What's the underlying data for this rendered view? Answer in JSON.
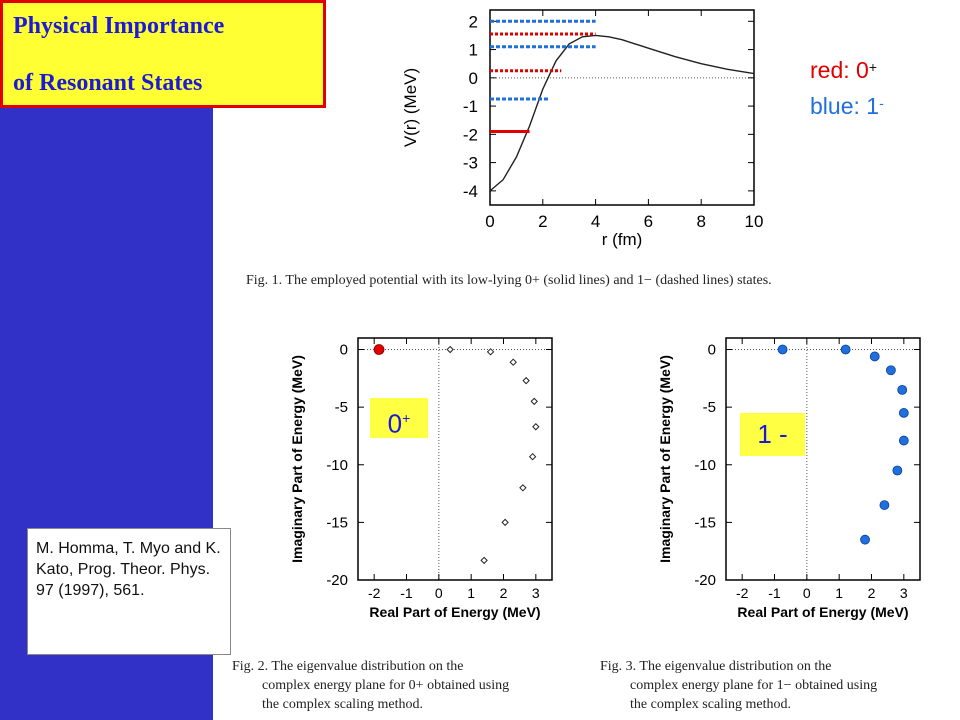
{
  "title": {
    "line1": "Physical Importance",
    "line2": "of Resonant States"
  },
  "reference": {
    "text": "M. Homma, T. Myo and K. Kato, Prog. Theor. Phys. 97 (1997), 561."
  },
  "legend": {
    "red_label": "red: 0",
    "red_sup": "+",
    "blue_label": "blue: 1",
    "blue_sup": "-"
  },
  "labels": {
    "zero_plus": "0",
    "zero_plus_sup": "+",
    "one_minus": "1 -"
  },
  "captions": {
    "fig1": "Fig. 1.   The employed potential with its low-lying 0+ (solid lines) and 1− (dashed lines) states.",
    "fig2_line1": "Fig. 2.   The eigenvalue distribution on the",
    "fig2_line2": "complex energy plane for 0+ obtained using",
    "fig2_line3": "the complex scaling method.",
    "fig3_line1": "Fig. 3.   The eigenvalue distribution on the",
    "fig3_line2": "complex energy plane for 1− obtained using",
    "fig3_line3": "the complex scaling method."
  },
  "colors": {
    "red": "#e00000",
    "blue": "#1f6fdc",
    "left_bar": "#3131c8",
    "yellow": "#ffff33"
  },
  "chart_data": [
    {
      "type": "line",
      "xlabel": "r (fm)",
      "ylabel": "V(r) (MeV)",
      "xlim": [
        0,
        10
      ],
      "ylim": [
        -4.5,
        2.4
      ],
      "xticks": [
        "0",
        "2",
        "4",
        "6",
        "8",
        "10"
      ],
      "yticks": [
        "2",
        "1",
        "0",
        "-1",
        "-2",
        "-3",
        "-4"
      ],
      "potential": {
        "x": [
          0,
          0.5,
          1,
          1.5,
          2,
          2.5,
          3,
          3.5,
          4,
          4.5,
          5,
          6,
          7,
          8,
          9,
          10
        ],
        "y": [
          -4.0,
          -3.6,
          -2.8,
          -1.7,
          -0.4,
          0.6,
          1.2,
          1.45,
          1.5,
          1.45,
          1.35,
          1.05,
          0.75,
          0.5,
          0.3,
          0.15
        ]
      },
      "levels_0plus": [
        {
          "energy": -1.9,
          "r_end": 1.5,
          "style": "solid"
        },
        {
          "energy": 0.25,
          "r_end": 2.7,
          "style": "dotted"
        },
        {
          "energy": 1.55,
          "r_end": 4.0,
          "style": "dotted"
        }
      ],
      "levels_1minus": [
        {
          "energy": -0.75,
          "r_end": 2.2,
          "style": "dashed"
        },
        {
          "energy": 1.1,
          "r_end": 4.0,
          "style": "dashed"
        },
        {
          "energy": 2.0,
          "r_end": 4.0,
          "style": "dashed"
        }
      ]
    },
    {
      "type": "scatter",
      "xlabel": "Real Part of Energy (MeV)",
      "ylabel": "Imaginary Part of Energy (MeV)",
      "xlim": [
        -2.5,
        3.5
      ],
      "ylim": [
        -20,
        1
      ],
      "xticks": [
        "-2",
        "-1",
        "0",
        "1",
        "2",
        "3"
      ],
      "yticks": [
        "0",
        "-5",
        "-10",
        "-15",
        "-20"
      ],
      "points": [
        {
          "x": -1.85,
          "y": 0.0,
          "highlight": true
        },
        {
          "x": 0.35,
          "y": 0.0
        },
        {
          "x": 1.6,
          "y": -0.2
        },
        {
          "x": 2.3,
          "y": -1.1
        },
        {
          "x": 2.7,
          "y": -2.7
        },
        {
          "x": 2.95,
          "y": -4.5
        },
        {
          "x": 3.0,
          "y": -6.7
        },
        {
          "x": 2.9,
          "y": -9.3
        },
        {
          "x": 2.6,
          "y": -12.0
        },
        {
          "x": 2.05,
          "y": -15.0
        },
        {
          "x": 1.4,
          "y": -18.3
        }
      ]
    },
    {
      "type": "scatter",
      "xlabel": "Real Part of Energy (MeV)",
      "ylabel": "Imaginary Part of Energy (MeV)",
      "xlim": [
        -2.5,
        3.5
      ],
      "ylim": [
        -20,
        1
      ],
      "xticks": [
        "-2",
        "-1",
        "0",
        "1",
        "2",
        "3"
      ],
      "yticks": [
        "0",
        "-5",
        "-10",
        "-15",
        "-20"
      ],
      "points": [
        {
          "x": -0.75,
          "y": 0.0
        },
        {
          "x": 1.2,
          "y": 0.0
        },
        {
          "x": 2.1,
          "y": -0.6
        },
        {
          "x": 2.6,
          "y": -1.8
        },
        {
          "x": 2.95,
          "y": -3.5
        },
        {
          "x": 3.0,
          "y": -5.5
        },
        {
          "x": 3.0,
          "y": -7.9
        },
        {
          "x": 2.8,
          "y": -10.5
        },
        {
          "x": 2.4,
          "y": -13.5
        },
        {
          "x": 1.8,
          "y": -16.5
        }
      ]
    }
  ]
}
